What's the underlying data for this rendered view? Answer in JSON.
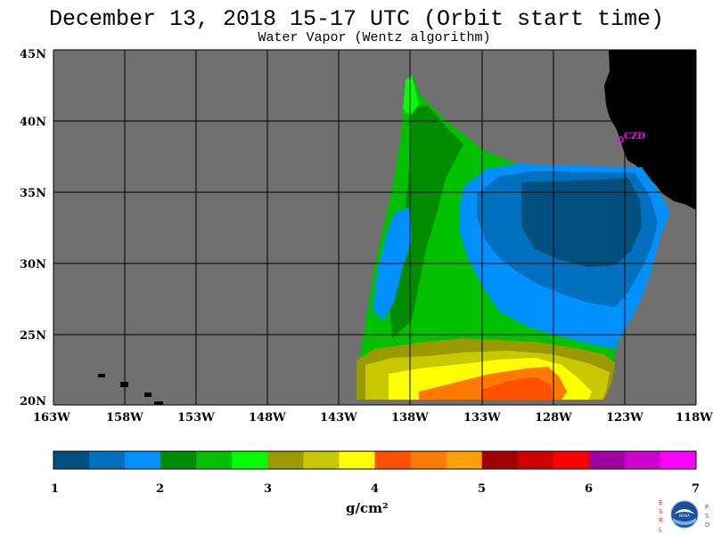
{
  "header": {
    "title": "December 13, 2018  15-17 UTC  (Orbit start time)",
    "subtitle": "Water Vapor (Wentz algorithm)"
  },
  "map": {
    "lat_labels": [
      "45N",
      "40N",
      "35N",
      "30N",
      "25N",
      "20N"
    ],
    "lon_labels": [
      "163W",
      "158W",
      "153W",
      "148W",
      "143W",
      "138W",
      "133W",
      "128W",
      "123W",
      "118W"
    ],
    "station_label": "CZD",
    "colors": {
      "land": "#000000",
      "no_data": "#707070",
      "grid": "#000000",
      "station": "#ff00ff"
    }
  },
  "colorbar": {
    "tick_labels": [
      "1",
      "2",
      "3",
      "4",
      "5",
      "6",
      "7"
    ],
    "unit_label": "g/cm²",
    "colors": [
      "#00507f",
      "#0070bf",
      "#0090ff",
      "#008c00",
      "#00c000",
      "#00ff00",
      "#9a9a00",
      "#c8c800",
      "#ffff00",
      "#ff5000",
      "#ff7800",
      "#ffa000",
      "#a00000",
      "#d00000",
      "#ff0000",
      "#a000a0",
      "#d000d0",
      "#ff00ff"
    ]
  },
  "logo": {
    "left_letters": [
      "E",
      "S",
      "R",
      "L"
    ],
    "right_letters": [
      "P",
      "S",
      "D"
    ],
    "emblem_text": "NOAA"
  }
}
